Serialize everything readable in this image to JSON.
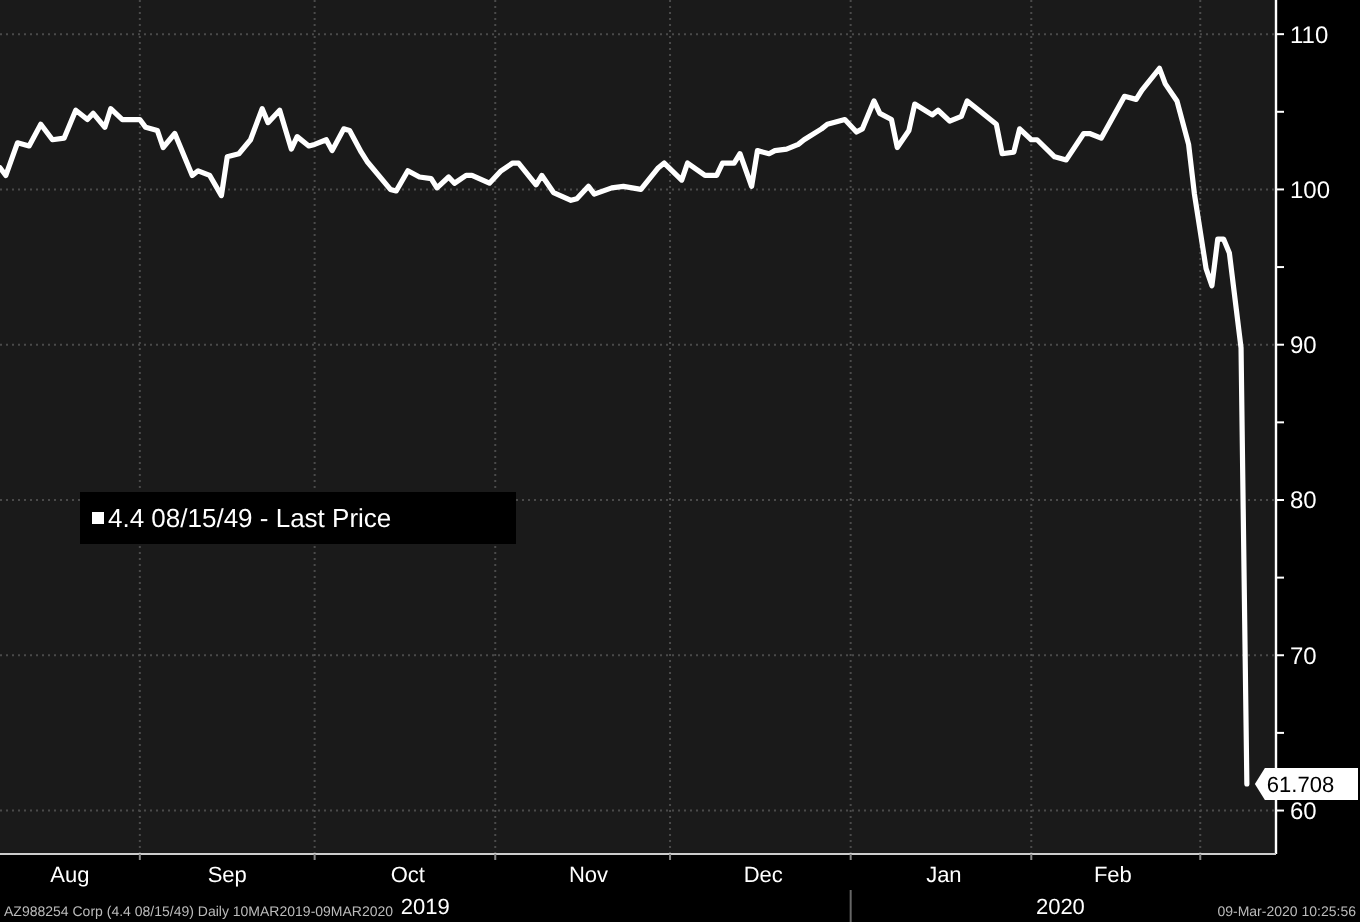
{
  "chart_data": {
    "type": "line",
    "x": [
      "2019-08-08",
      "2019-08-09",
      "2019-08-11",
      "2019-08-13",
      "2019-08-15",
      "2019-08-17",
      "2019-08-19",
      "2019-08-21",
      "2019-08-23",
      "2019-08-24",
      "2019-08-26",
      "2019-08-27",
      "2019-08-29",
      "2019-09-01",
      "2019-09-02",
      "2019-09-04",
      "2019-09-05",
      "2019-09-07",
      "2019-09-10",
      "2019-09-11",
      "2019-09-13",
      "2019-09-15",
      "2019-09-16",
      "2019-09-18",
      "2019-09-20",
      "2019-09-22",
      "2019-09-23",
      "2019-09-25",
      "2019-09-27",
      "2019-09-28",
      "2019-09-30",
      "2019-10-01",
      "2019-10-03",
      "2019-10-04",
      "2019-10-06",
      "2019-10-07",
      "2019-10-09",
      "2019-10-10",
      "2019-10-14",
      "2019-10-15",
      "2019-10-17",
      "2019-10-19",
      "2019-10-21",
      "2019-10-22",
      "2019-10-24",
      "2019-10-25",
      "2019-10-27",
      "2019-10-28",
      "2019-10-31",
      "2019-11-02",
      "2019-11-04",
      "2019-11-05",
      "2019-11-08",
      "2019-11-09",
      "2019-11-11",
      "2019-11-14",
      "2019-11-15",
      "2019-11-17",
      "2019-11-18",
      "2019-11-21",
      "2019-11-23",
      "2019-11-26",
      "2019-11-29",
      "2019-11-30",
      "2019-12-03",
      "2019-12-04",
      "2019-12-07",
      "2019-12-09",
      "2019-12-10",
      "2019-12-12",
      "2019-12-13",
      "2019-12-15",
      "2019-12-16",
      "2019-12-18",
      "2019-12-19",
      "2019-12-21",
      "2019-12-23",
      "2019-12-24",
      "2019-12-27",
      "2019-12-28",
      "2019-12-31",
      "2020-01-02",
      "2020-01-03",
      "2020-01-05",
      "2020-01-06",
      "2020-01-08",
      "2020-01-09",
      "2020-01-11",
      "2020-01-12",
      "2020-01-15",
      "2020-01-16",
      "2020-01-18",
      "2020-01-20",
      "2020-01-21",
      "2020-01-23",
      "2020-01-26",
      "2020-01-27",
      "2020-01-29",
      "2020-01-30",
      "2020-02-01",
      "2020-02-02",
      "2020-02-05",
      "2020-02-07",
      "2020-02-10",
      "2020-02-11",
      "2020-02-13",
      "2020-02-17",
      "2020-02-19",
      "2020-02-20",
      "2020-02-23",
      "2020-02-24",
      "2020-02-26",
      "2020-02-28",
      "2020-02-29",
      "2020-03-02",
      "2020-03-03",
      "2020-03-04",
      "2020-03-05",
      "2020-03-06",
      "2020-03-08",
      "2020-03-09"
    ],
    "series": [
      {
        "name": "4.4 08/15/49 - Last Price",
        "color": "#ffffff",
        "values": [
          101.4,
          100.9,
          103.0,
          102.8,
          104.2,
          103.2,
          103.3,
          105.1,
          104.5,
          104.9,
          104.0,
          105.2,
          104.5,
          104.5,
          104.0,
          103.8,
          102.7,
          103.6,
          100.9,
          101.2,
          100.9,
          99.6,
          102.1,
          102.3,
          103.2,
          105.2,
          104.3,
          105.1,
          102.6,
          103.4,
          102.8,
          102.9,
          103.2,
          102.5,
          103.9,
          103.8,
          102.4,
          101.8,
          100.0,
          99.9,
          101.2,
          100.8,
          100.7,
          100.1,
          100.8,
          100.4,
          100.9,
          100.9,
          100.4,
          101.2,
          101.7,
          101.7,
          100.3,
          100.9,
          99.8,
          99.3,
          99.4,
          100.2,
          99.7,
          100.1,
          100.2,
          100.0,
          101.4,
          101.7,
          100.6,
          101.7,
          100.9,
          100.9,
          101.7,
          101.7,
          102.3,
          100.2,
          102.5,
          102.3,
          102.5,
          102.6,
          102.9,
          103.2,
          103.9,
          104.2,
          104.5,
          103.7,
          103.9,
          105.7,
          104.9,
          104.5,
          102.7,
          103.8,
          105.5,
          104.8,
          105.1,
          104.4,
          104.7,
          105.7,
          105.1,
          104.2,
          102.3,
          102.4,
          103.9,
          103.2,
          103.2,
          102.1,
          101.9,
          103.6,
          103.6,
          103.3,
          106.0,
          105.8,
          106.4,
          107.8,
          106.8,
          105.7,
          102.9,
          99.7,
          94.9,
          93.8,
          96.8,
          96.8,
          95.9,
          89.8,
          61.708
        ],
        "value_labels": [
          null,
          null,
          null,
          null,
          null,
          null,
          null,
          null,
          null,
          null,
          null,
          null,
          null,
          null,
          null,
          null,
          null,
          null,
          null,
          null,
          null,
          null,
          null,
          null,
          null,
          null,
          null,
          null,
          null,
          null,
          null,
          null,
          null,
          null,
          null,
          null,
          null,
          null,
          null,
          null,
          null,
          null,
          null,
          null,
          null,
          null,
          null,
          null,
          null,
          null,
          null,
          null,
          null,
          null,
          null,
          null,
          null,
          null,
          null,
          null,
          null,
          null,
          null,
          null,
          null,
          null,
          null,
          null,
          null,
          null,
          null,
          null,
          null,
          null,
          null,
          null,
          null,
          null,
          null,
          null,
          null,
          null,
          null,
          null,
          null,
          null,
          null,
          null,
          null,
          null,
          null,
          null,
          null,
          null,
          null,
          null,
          null,
          null,
          null,
          null,
          null,
          null,
          null,
          null,
          null,
          null,
          null,
          null,
          null,
          null,
          null,
          null,
          null,
          null,
          null,
          null,
          null,
          null,
          null,
          null,
          "61.708"
        ]
      }
    ],
    "xlim": [
      "2019-08-08",
      "2020-03-14"
    ],
    "xticks": [
      {
        "value": "2019-08-20",
        "label": "Aug"
      },
      {
        "value": "2019-09-01",
        "label": null
      },
      {
        "value": "2019-09-16",
        "label": "Sep"
      },
      {
        "value": "2019-10-01",
        "label": null
      },
      {
        "value": "2019-10-17",
        "label": "Oct"
      },
      {
        "value": "2019-11-01",
        "label": null
      },
      {
        "value": "2019-11-17",
        "label": "Nov"
      },
      {
        "value": "2019-12-01",
        "label": null
      },
      {
        "value": "2019-12-17",
        "label": "Dec"
      },
      {
        "value": "2020-01-01",
        "label": null
      },
      {
        "value": "2020-01-17",
        "label": "Jan"
      },
      {
        "value": "2020-02-01",
        "label": null
      },
      {
        "value": "2020-02-15",
        "label": "Feb"
      },
      {
        "value": "2020-03-01",
        "label": null
      }
    ],
    "x2lim": [
      "2019-08-08",
      "2020-03-14"
    ],
    "x2ticks": [
      {
        "value": "2019-10-20",
        "label": "2019"
      },
      {
        "value": "2020-01-01",
        "label": null
      },
      {
        "value": "2020-02-06",
        "label": "2020"
      }
    ],
    "ylim": [
      57.2,
      112.2
    ],
    "yticks": [
      60,
      {
        "value": 65,
        "label": null
      },
      70,
      {
        "value": 75,
        "label": null
      },
      80,
      {
        "value": 85,
        "label": null
      },
      90,
      {
        "value": 95,
        "label": null
      },
      100,
      {
        "value": 105,
        "label": null
      },
      110
    ],
    "grid": true,
    "legend": "left",
    "line_style": "solid",
    "marker": "none",
    "annotations": [
      "AZ988254 Corp (4.4 08/15/49)  Daily 10MAR2019-09MAR2020",
      "09-Mar-2020 10:25:56"
    ]
  }
}
